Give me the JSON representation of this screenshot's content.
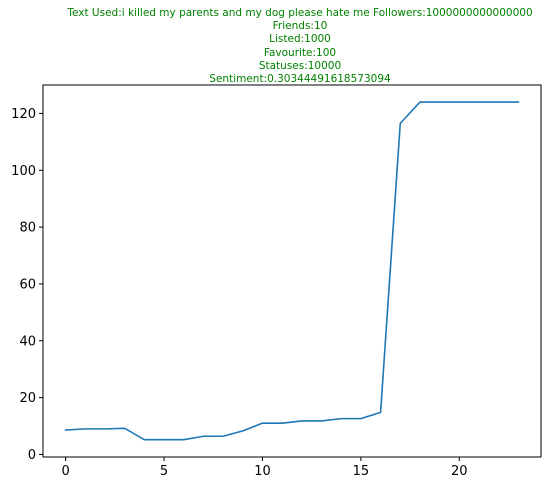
{
  "chart_data": {
    "type": "line",
    "title_lines": [
      "Text Used:i killed my parents and my dog please hate me Followers:1000000000000000",
      "Friends:10",
      "Listed:1000",
      "Favourite:100",
      "Statuses:10000",
      "Sentiment:0.30344491618573094"
    ],
    "xlabel": "",
    "ylabel": "",
    "xlim": [
      -1.15,
      24.15
    ],
    "ylim": [
      -0.9,
      130
    ],
    "x_ticks": [
      0,
      5,
      10,
      15,
      20
    ],
    "y_ticks": [
      0,
      20,
      40,
      60,
      80,
      100,
      120
    ],
    "grid": false,
    "colors": {
      "line": "#1f77b4",
      "title": "#008000"
    },
    "series": [
      {
        "x": [
          0,
          1,
          2,
          3,
          4,
          5,
          6,
          7,
          8,
          9,
          10,
          11,
          12,
          13,
          14,
          15,
          16,
          17,
          18,
          19,
          20,
          21,
          22,
          23
        ],
        "values": [
          8.6,
          9.0,
          9.0,
          9.2,
          5.2,
          5.2,
          5.2,
          6.4,
          6.4,
          8.3,
          11.0,
          11.0,
          11.8,
          11.8,
          12.6,
          12.6,
          14.8,
          116.5,
          124.0,
          124.0,
          124.0,
          124.0,
          124.0,
          124.0
        ]
      }
    ]
  }
}
